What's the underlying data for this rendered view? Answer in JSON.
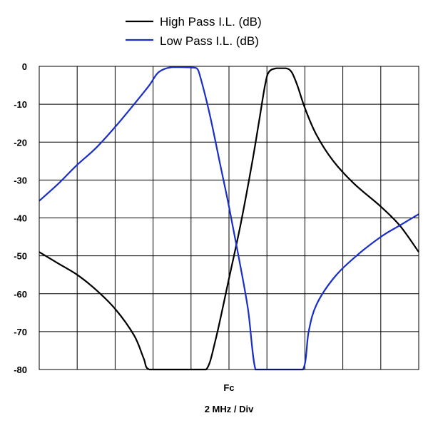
{
  "chart_data": {
    "type": "line",
    "xlabel_center": "Fc",
    "xlabel_scale": "2 MHz / Div",
    "x_range": [
      -5,
      5
    ],
    "ylim": [
      -80,
      0
    ],
    "y_ticks": [
      0,
      -10,
      -20,
      -30,
      -40,
      -50,
      -60,
      -70,
      -80
    ],
    "grid": true,
    "legend_position": "top-center",
    "series": [
      {
        "name": "High Pass I.L. (dB)",
        "color": "#000000",
        "points": [
          [
            -5.0,
            -49
          ],
          [
            -4.5,
            -52
          ],
          [
            -4.0,
            -55
          ],
          [
            -3.5,
            -59
          ],
          [
            -3.0,
            -64
          ],
          [
            -2.5,
            -71
          ],
          [
            -2.25,
            -77
          ],
          [
            -2.1,
            -80
          ],
          [
            -1.5,
            -80
          ],
          [
            -1.0,
            -80
          ],
          [
            -0.6,
            -80
          ],
          [
            -0.35,
            -72
          ],
          [
            0.0,
            -56
          ],
          [
            0.3,
            -42
          ],
          [
            0.6,
            -26
          ],
          [
            0.8,
            -14
          ],
          [
            0.95,
            -5
          ],
          [
            1.05,
            -1.5
          ],
          [
            1.25,
            -0.5
          ],
          [
            1.5,
            -0.5
          ],
          [
            1.65,
            -1.5
          ],
          [
            1.8,
            -5
          ],
          [
            2.0,
            -11
          ],
          [
            2.3,
            -18
          ],
          [
            2.75,
            -25
          ],
          [
            3.3,
            -31
          ],
          [
            4.0,
            -37
          ],
          [
            4.5,
            -42
          ],
          [
            5.0,
            -49
          ]
        ]
      },
      {
        "name": "Low Pass I.L. (dB)",
        "color": "#1a2ec8",
        "points": [
          [
            -5.0,
            -35.5
          ],
          [
            -4.5,
            -31
          ],
          [
            -4.0,
            -26
          ],
          [
            -3.5,
            -21.5
          ],
          [
            -3.0,
            -16
          ],
          [
            -2.5,
            -10
          ],
          [
            -2.1,
            -5
          ],
          [
            -1.85,
            -1.5
          ],
          [
            -1.5,
            -0.2
          ],
          [
            -1.0,
            -0.3
          ],
          [
            -0.85,
            -0.5
          ],
          [
            -0.75,
            -3
          ],
          [
            -0.5,
            -13
          ],
          [
            -0.25,
            -25
          ],
          [
            0.0,
            -37
          ],
          [
            0.25,
            -50
          ],
          [
            0.5,
            -64
          ],
          [
            0.7,
            -80
          ],
          [
            1.0,
            -80
          ],
          [
            1.5,
            -80
          ],
          [
            1.95,
            -80
          ],
          [
            2.1,
            -70
          ],
          [
            2.3,
            -63
          ],
          [
            2.75,
            -56
          ],
          [
            3.3,
            -50.5
          ],
          [
            4.0,
            -45
          ],
          [
            4.5,
            -42
          ],
          [
            5.0,
            -39
          ]
        ]
      }
    ]
  }
}
